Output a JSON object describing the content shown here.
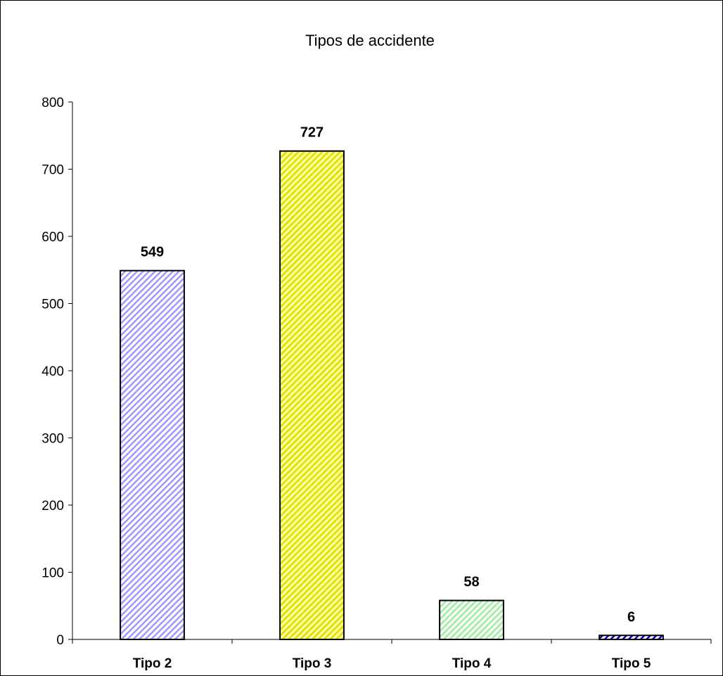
{
  "chart_data": {
    "type": "bar",
    "title": "Tipos de accidente",
    "categories": [
      "Tipo 2",
      "Tipo 3",
      "Tipo 4",
      "Tipo 5"
    ],
    "values": [
      549,
      727,
      58,
      6
    ],
    "data_labels": [
      "549",
      "727",
      "58",
      "6"
    ],
    "ylim": [
      0,
      800
    ],
    "yticks": [
      0,
      100,
      200,
      300,
      400,
      500,
      600,
      700,
      800
    ],
    "ytick_labels": [
      "0",
      "100",
      "200",
      "300",
      "400",
      "500",
      "600",
      "700",
      "800"
    ],
    "xlabel": "",
    "ylabel": "",
    "grid": false,
    "legend": "none",
    "bar_fills": [
      {
        "base": "#ffffff",
        "hatch": "#9999ff"
      },
      {
        "base": "#ffff99",
        "hatch": "#dddd00"
      },
      {
        "base": "#ffffff",
        "hatch": "#99ee99"
      },
      {
        "base": "#ffffff",
        "hatch": "#0000cc"
      }
    ],
    "bar_border": "#000000"
  }
}
